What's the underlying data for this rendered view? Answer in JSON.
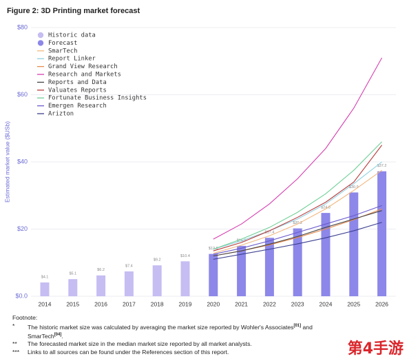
{
  "chart_data": {
    "type": "bar",
    "title": "Figure 2: 3D Printing market forecast",
    "y_label": "Estimated market value ($USb)",
    "categories": [
      "2014",
      "2015",
      "2016",
      "2017",
      "2018",
      "2019",
      "2020",
      "2021",
      "2022",
      "2023",
      "2024",
      "2025",
      "2026"
    ],
    "ylim": [
      0,
      80
    ],
    "yticks": [
      {
        "value": 0,
        "label": "$0.0"
      },
      {
        "value": 20,
        "label": "$20"
      },
      {
        "value": 40,
        "label": "$40"
      },
      {
        "value": 60,
        "label": "$60"
      },
      {
        "value": 80,
        "label": "$80"
      }
    ],
    "grid": true,
    "series": [
      {
        "name": "Historic data",
        "type": "bar",
        "color": "#c6bdf2",
        "values": [
          4.1,
          5.1,
          6.2,
          7.4,
          9.2,
          10.4,
          null,
          null,
          null,
          null,
          null,
          null,
          null
        ],
        "value_labels": [
          "$4.1",
          "$5.1",
          "$6.2",
          "$7.4",
          "$9.2",
          "$10.4",
          null,
          null,
          null,
          null,
          null,
          null,
          null
        ]
      },
      {
        "name": "Forecast",
        "type": "bar",
        "color": "#8c87e8",
        "values": [
          null,
          null,
          null,
          null,
          null,
          null,
          12.6,
          15.0,
          17.4,
          20.2,
          24.8,
          30.9,
          37.2
        ],
        "value_labels": [
          null,
          null,
          null,
          null,
          null,
          null,
          "$12.6",
          "$15.0",
          "$17.4",
          "$20.2",
          "$24.8",
          "$30.9",
          "$37.2"
        ]
      },
      {
        "name": "SmarTech",
        "type": "line",
        "color": "#f2b77e",
        "values": [
          null,
          null,
          null,
          null,
          null,
          null,
          12.8,
          15.2,
          18,
          21.5,
          26,
          31.5,
          37.5
        ]
      },
      {
        "name": "Report Linker",
        "type": "line",
        "color": "#8fd0e0",
        "values": [
          null,
          null,
          null,
          null,
          null,
          null,
          14,
          16.5,
          19.5,
          23,
          27.5,
          33.5,
          40
        ]
      },
      {
        "name": "Grand View Research",
        "type": "line",
        "color": "#e8894a",
        "values": [
          null,
          null,
          null,
          null,
          null,
          null,
          12,
          13.5,
          15.3,
          17.5,
          20,
          22.8,
          26
        ]
      },
      {
        "name": "Research and Markets",
        "type": "line",
        "color": "#d63fb0",
        "values": [
          null,
          null,
          null,
          null,
          null,
          null,
          17,
          21.5,
          27.5,
          35,
          44,
          56,
          71
        ]
      },
      {
        "name": "Reports and Data",
        "type": "line",
        "color": "#444444",
        "values": [
          null,
          null,
          null,
          null,
          null,
          null,
          12,
          13.5,
          15.5,
          17.8,
          20.5,
          23,
          25.5
        ]
      },
      {
        "name": "Valuates Reports",
        "type": "line",
        "color": "#b83a3a",
        "values": [
          null,
          null,
          null,
          null,
          null,
          null,
          13.5,
          16,
          19.5,
          23.5,
          28,
          34,
          45
        ]
      },
      {
        "name": "Fortunate Business Insights",
        "type": "line",
        "color": "#6fcf97",
        "values": [
          null,
          null,
          null,
          null,
          null,
          null,
          14,
          17,
          20.5,
          25,
          30.5,
          37.5,
          46
        ]
      },
      {
        "name": "Emergen Research",
        "type": "line",
        "color": "#6a5acd",
        "values": [
          null,
          null,
          null,
          null,
          null,
          null,
          12.5,
          14.3,
          16.5,
          19,
          21.5,
          24,
          27
        ]
      },
      {
        "name": "Arizton",
        "type": "line",
        "color": "#3b3f8f",
        "values": [
          null,
          null,
          null,
          null,
          null,
          null,
          11,
          12.5,
          14,
          15.6,
          17.4,
          19.5,
          22
        ]
      }
    ]
  },
  "footnote": {
    "title": "Footnote:",
    "notes": [
      {
        "marker": "*",
        "parts": [
          {
            "text": "The historic market size was calculated by averaging the market size reported by Wohler's Associates"
          },
          {
            "text": "[01]",
            "sup": true
          },
          {
            "text": " and SmarTech"
          },
          {
            "text": "[04]",
            "sup": true
          },
          {
            "text": "."
          }
        ]
      },
      {
        "marker": "**",
        "parts": [
          {
            "text": "The forecasted market size in the median market size reported by all market analysts."
          }
        ]
      },
      {
        "marker": "***",
        "parts": [
          {
            "text": "Links to all sources can be found under the References section of this report."
          }
        ]
      }
    ]
  },
  "watermark": "第4手游"
}
